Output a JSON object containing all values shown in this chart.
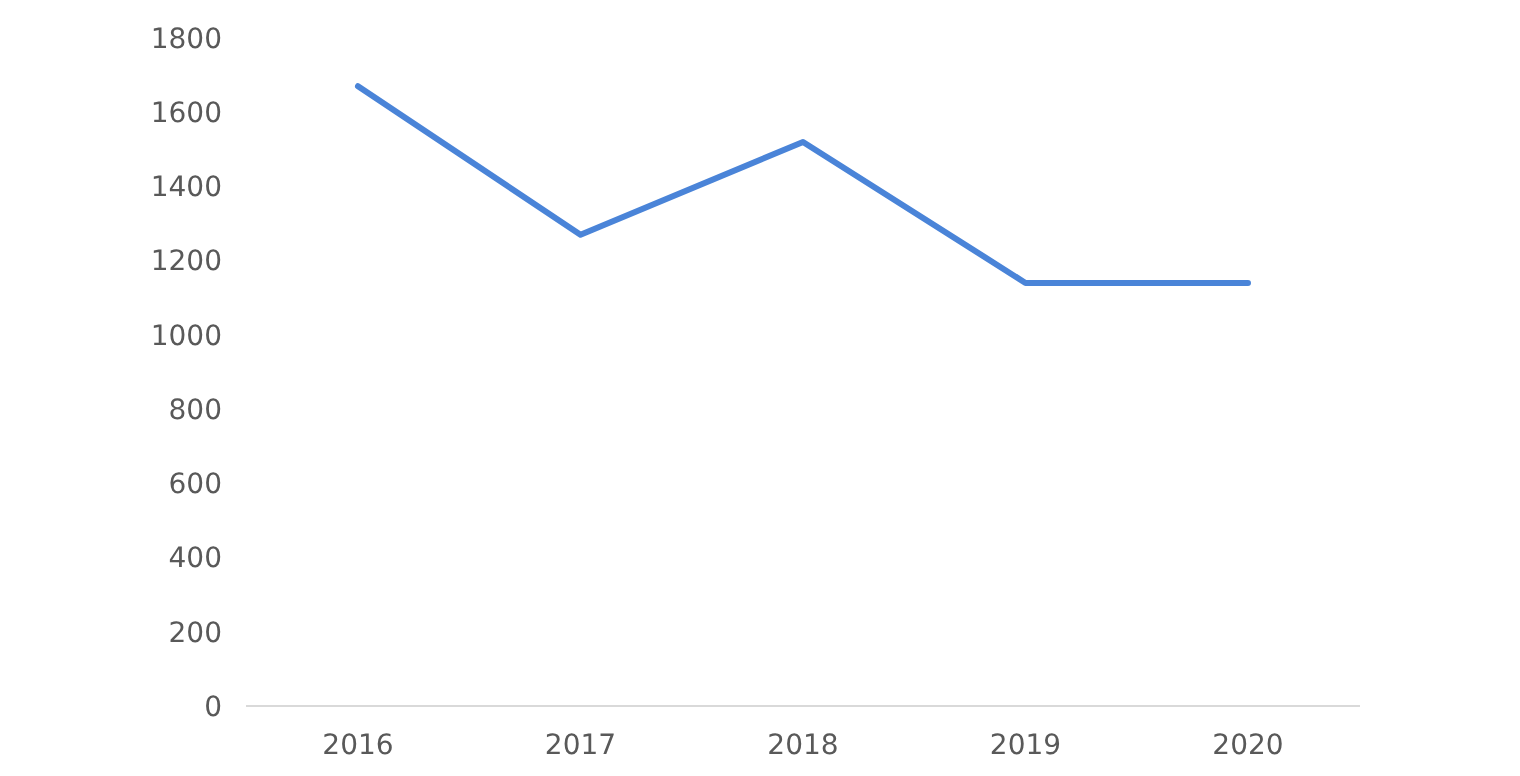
{
  "chart_data": {
    "type": "line",
    "categories": [
      "2016",
      "2017",
      "2018",
      "2019",
      "2020"
    ],
    "series": [
      {
        "color": "#4a84d8",
        "values": [
          1670,
          1270,
          1520,
          1140,
          1140
        ]
      }
    ],
    "ylim": [
      0,
      1800
    ],
    "yticks": [
      0,
      200,
      400,
      600,
      800,
      1000,
      1200,
      1400,
      1600,
      1800
    ],
    "grid": false,
    "marker": "none",
    "line_style": "solid"
  }
}
